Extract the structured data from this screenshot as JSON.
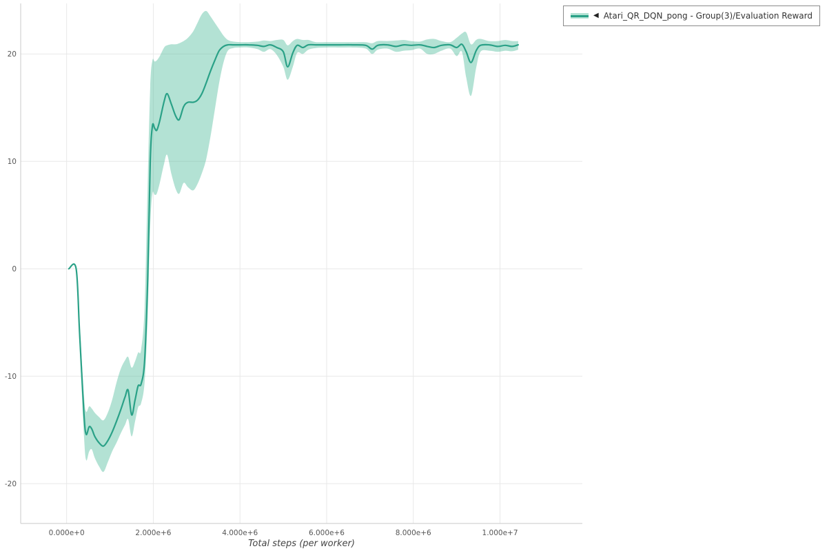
{
  "colors": {
    "line": "#2aa187",
    "band": "#57bfa0",
    "grid": "#e8e8e8",
    "axis": "#c9c9c9",
    "tick_text": "#555555",
    "axis_title_text": "#444444"
  },
  "legend": {
    "marker_arrow": "◀",
    "label": "Atari_QR_DQN_pong - Group(3)/Evaluation Reward"
  },
  "chart_data": {
    "type": "line",
    "title": "",
    "xlabel": "Total steps (per worker)",
    "ylabel": "",
    "xlim": [
      -1060000,
      11900000
    ],
    "ylim": [
      -23.7,
      24.7
    ],
    "grid": true,
    "legend_position": "top-right",
    "x_ticks": {
      "values": [
        0,
        2000000,
        4000000,
        6000000,
        8000000,
        10000000
      ],
      "labels": [
        "0.000e+0",
        "2.000e+6",
        "4.000e+6",
        "6.000e+6",
        "8.000e+6",
        "1.000e+7"
      ]
    },
    "y_ticks": {
      "values": [
        -20,
        -10,
        0,
        10,
        20
      ],
      "labels": [
        "-20",
        "-10",
        "0",
        "10",
        "20"
      ]
    },
    "x_scale": 1000000,
    "series": [
      {
        "name": "Atari_QR_DQN_pong - Group(3)/Evaluation Reward",
        "color": "#2aa187",
        "band_color": "#57bfa0",
        "band_opacity": 0.45,
        "x": [
          0.05,
          0.22,
          0.3,
          0.4,
          0.45,
          0.52,
          0.58,
          0.65,
          0.75,
          0.85,
          0.95,
          1.05,
          1.15,
          1.25,
          1.35,
          1.42,
          1.5,
          1.58,
          1.65,
          1.72,
          1.8,
          1.87,
          1.93,
          1.98,
          2.03,
          2.08,
          2.15,
          2.25,
          2.32,
          2.42,
          2.52,
          2.6,
          2.7,
          2.8,
          2.92,
          3.02,
          3.12,
          3.22,
          3.32,
          3.42,
          3.52,
          3.62,
          3.72,
          3.85,
          4.0,
          4.2,
          4.4,
          4.55,
          4.7,
          4.85,
          5.0,
          5.1,
          5.22,
          5.32,
          5.45,
          5.58,
          5.75,
          6.0,
          6.3,
          6.6,
          6.9,
          7.05,
          7.18,
          7.4,
          7.6,
          7.78,
          7.95,
          8.15,
          8.32,
          8.48,
          8.65,
          8.85,
          9.0,
          9.12,
          9.22,
          9.33,
          9.45,
          9.55,
          9.75,
          9.95,
          10.12,
          10.28,
          10.42
        ],
        "mean": [
          0,
          0,
          -6,
          -13.5,
          -15.4,
          -14.7,
          -14.9,
          -15.6,
          -16.2,
          -16.5,
          -16.0,
          -15.2,
          -14.2,
          -13.1,
          -11.9,
          -11.3,
          -13.6,
          -12.2,
          -10.9,
          -10.7,
          -8.5,
          -1.0,
          10.0,
          13.3,
          13.1,
          12.9,
          13.8,
          15.6,
          16.3,
          15.3,
          14.2,
          13.9,
          15.1,
          15.5,
          15.5,
          15.7,
          16.3,
          17.3,
          18.4,
          19.4,
          20.3,
          20.7,
          20.85,
          20.85,
          20.85,
          20.85,
          20.8,
          20.7,
          20.85,
          20.6,
          20.2,
          18.8,
          20.1,
          20.8,
          20.6,
          20.85,
          20.85,
          20.85,
          20.85,
          20.85,
          20.8,
          20.45,
          20.8,
          20.85,
          20.7,
          20.85,
          20.8,
          20.85,
          20.7,
          20.6,
          20.8,
          20.85,
          20.6,
          20.9,
          20.2,
          19.2,
          20.3,
          20.8,
          20.85,
          20.7,
          20.8,
          20.7,
          20.85
        ],
        "lower": [
          0,
          0,
          -7,
          -15.5,
          -17.8,
          -17.0,
          -16.8,
          -17.6,
          -18.4,
          -18.9,
          -18.0,
          -17.0,
          -16.2,
          -15.3,
          -14.5,
          -14.0,
          -15.6,
          -14.2,
          -12.9,
          -12.5,
          -10.5,
          -4.5,
          4.0,
          7.0,
          6.9,
          7.0,
          8.0,
          9.8,
          10.6,
          8.8,
          7.4,
          7.0,
          8.0,
          7.6,
          7.3,
          7.9,
          8.9,
          10.2,
          12.3,
          14.8,
          17.3,
          19.2,
          20.3,
          20.55,
          20.6,
          20.6,
          20.45,
          20.2,
          20.45,
          19.9,
          18.8,
          17.6,
          18.8,
          20.1,
          20.0,
          20.4,
          20.55,
          20.6,
          20.6,
          20.6,
          20.5,
          20.0,
          20.4,
          20.5,
          20.2,
          20.3,
          20.35,
          20.5,
          20.0,
          20.0,
          20.3,
          20.5,
          19.8,
          20.2,
          17.8,
          16.1,
          18.7,
          20.2,
          20.3,
          20.2,
          20.3,
          20.25,
          20.4
        ],
        "upper": [
          0,
          0,
          -5,
          -11.8,
          -13.3,
          -12.8,
          -13.0,
          -13.4,
          -13.8,
          -14.1,
          -13.4,
          -12.2,
          -10.6,
          -9.3,
          -8.5,
          -8.2,
          -9.2,
          -8.6,
          -7.8,
          -7.5,
          -3.5,
          8.0,
          17.0,
          19.4,
          19.3,
          19.4,
          19.8,
          20.6,
          20.8,
          20.9,
          20.9,
          21.0,
          21.2,
          21.5,
          22.1,
          22.9,
          23.7,
          24.0,
          23.5,
          22.9,
          22.3,
          21.7,
          21.3,
          21.15,
          21.1,
          21.1,
          21.15,
          21.25,
          21.2,
          21.3,
          21.3,
          20.8,
          21.2,
          21.4,
          21.3,
          21.3,
          21.1,
          21.1,
          21.1,
          21.1,
          21.1,
          21.0,
          21.2,
          21.2,
          21.25,
          21.3,
          21.2,
          21.15,
          21.35,
          21.4,
          21.2,
          21.1,
          21.5,
          21.9,
          22.0,
          20.9,
          21.3,
          21.4,
          21.2,
          21.2,
          21.3,
          21.2,
          21.2
        ]
      }
    ]
  }
}
